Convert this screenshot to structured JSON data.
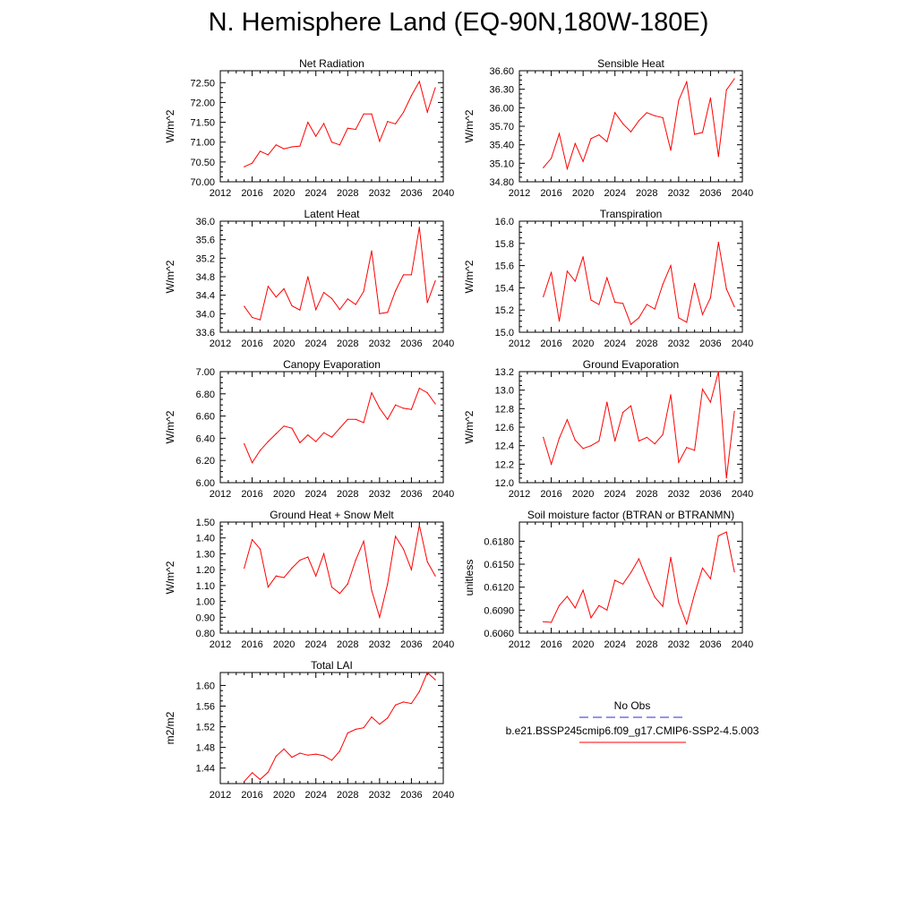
{
  "page_title": "N. Hemisphere Land (EQ-90N,180W-180E)",
  "legend": {
    "obs_label": "No Obs",
    "obs_color": "#2b2bd6",
    "model_label": "b.e21.BSSP245cmip6.f09_g17.CMIP6-SSP2-4.5.003",
    "model_color": "#ff0000"
  },
  "chart_data": [
    {
      "type": "line",
      "title": "Net Radiation",
      "ylabel": "W/m^2",
      "xlim": [
        2012,
        2040
      ],
      "x_ticks": [
        2012,
        2016,
        2020,
        2024,
        2028,
        2032,
        2036,
        2040
      ],
      "ylim": [
        70.0,
        72.8
      ],
      "y_ticks": [
        "70.00",
        "70.50",
        "71.00",
        "71.50",
        "72.00",
        "72.50"
      ],
      "series": [
        {
          "color": "#ff0000",
          "x": [
            2015,
            2016,
            2017,
            2018,
            2019,
            2020,
            2021,
            2022,
            2023,
            2024,
            2025,
            2026,
            2027,
            2028,
            2029,
            2030,
            2031,
            2032,
            2033,
            2034,
            2035,
            2036,
            2037,
            2038,
            2039
          ],
          "y": [
            70.38,
            70.47,
            70.77,
            70.68,
            70.93,
            70.83,
            70.88,
            70.9,
            71.5,
            71.15,
            71.47,
            71.0,
            70.93,
            71.35,
            71.32,
            71.71,
            71.71,
            71.02,
            71.52,
            71.46,
            71.75,
            72.17,
            72.53,
            71.76,
            72.37
          ]
        }
      ]
    },
    {
      "type": "line",
      "title": "Sensible Heat",
      "ylabel": "W/m^2",
      "xlim": [
        2012,
        2040
      ],
      "x_ticks": [
        2012,
        2016,
        2020,
        2024,
        2028,
        2032,
        2036,
        2040
      ],
      "ylim": [
        34.8,
        36.6
      ],
      "y_ticks": [
        "34.80",
        "35.10",
        "35.40",
        "35.70",
        "36.00",
        "36.30",
        "36.60"
      ],
      "series": [
        {
          "color": "#ff0000",
          "x": [
            2015,
            2016,
            2017,
            2018,
            2019,
            2020,
            2021,
            2022,
            2023,
            2024,
            2025,
            2026,
            2027,
            2028,
            2029,
            2030,
            2031,
            2032,
            2033,
            2034,
            2035,
            2036,
            2037,
            2038,
            2039
          ],
          "y": [
            35.03,
            35.18,
            35.58,
            35.01,
            35.42,
            35.13,
            35.5,
            35.56,
            35.45,
            35.92,
            35.74,
            35.61,
            35.79,
            35.92,
            35.87,
            35.84,
            35.31,
            36.12,
            36.42,
            35.57,
            35.6,
            36.16,
            35.21,
            36.29,
            36.47
          ]
        }
      ]
    },
    {
      "type": "line",
      "title": "Latent Heat",
      "ylabel": "W/m^2",
      "xlim": [
        2012,
        2040
      ],
      "x_ticks": [
        2012,
        2016,
        2020,
        2024,
        2028,
        2032,
        2036,
        2040
      ],
      "ylim": [
        33.6,
        36.0
      ],
      "y_ticks": [
        "33.6",
        "34.0",
        "34.4",
        "34.8",
        "35.2",
        "35.6",
        "36.0"
      ],
      "series": [
        {
          "color": "#ff0000",
          "x": [
            2015,
            2016,
            2017,
            2018,
            2019,
            2020,
            2021,
            2022,
            2023,
            2024,
            2025,
            2026,
            2027,
            2028,
            2029,
            2030,
            2031,
            2032,
            2033,
            2034,
            2035,
            2036,
            2037,
            2038,
            2039
          ],
          "y": [
            34.16,
            33.92,
            33.87,
            34.59,
            34.36,
            34.54,
            34.17,
            34.08,
            34.8,
            34.09,
            34.46,
            34.33,
            34.09,
            34.32,
            34.2,
            34.48,
            35.36,
            34.0,
            34.03,
            34.49,
            34.84,
            34.84,
            35.87,
            34.24,
            34.71
          ]
        }
      ]
    },
    {
      "type": "line",
      "title": "Transpiration",
      "ylabel": "W/m^2",
      "xlim": [
        2012,
        2040
      ],
      "x_ticks": [
        2012,
        2016,
        2020,
        2024,
        2028,
        2032,
        2036,
        2040
      ],
      "ylim": [
        15.0,
        16.0
      ],
      "y_ticks": [
        "15.0",
        "15.2",
        "15.4",
        "15.6",
        "15.8",
        "16.0"
      ],
      "series": [
        {
          "color": "#ff0000",
          "x": [
            2015,
            2016,
            2017,
            2018,
            2019,
            2020,
            2021,
            2022,
            2023,
            2024,
            2025,
            2026,
            2027,
            2028,
            2029,
            2030,
            2031,
            2032,
            2033,
            2034,
            2035,
            2036,
            2037,
            2038,
            2039
          ],
          "y": [
            15.32,
            15.54,
            15.1,
            15.55,
            15.46,
            15.68,
            15.29,
            15.25,
            15.49,
            15.27,
            15.26,
            15.07,
            15.13,
            15.25,
            15.21,
            15.43,
            15.6,
            15.13,
            15.09,
            15.44,
            15.16,
            15.31,
            15.81,
            15.39,
            15.23
          ]
        }
      ]
    },
    {
      "type": "line",
      "title": "Canopy Evaporation",
      "ylabel": "W/m^2",
      "xlim": [
        2012,
        2040
      ],
      "x_ticks": [
        2012,
        2016,
        2020,
        2024,
        2028,
        2032,
        2036,
        2040
      ],
      "ylim": [
        6.0,
        7.0
      ],
      "y_ticks": [
        "6.00",
        "6.20",
        "6.40",
        "6.60",
        "6.80",
        "7.00"
      ],
      "series": [
        {
          "color": "#ff0000",
          "x": [
            2015,
            2016,
            2017,
            2018,
            2019,
            2020,
            2021,
            2022,
            2023,
            2024,
            2025,
            2026,
            2027,
            2028,
            2029,
            2030,
            2031,
            2032,
            2033,
            2034,
            2035,
            2036,
            2037,
            2038,
            2039
          ],
          "y": [
            6.35,
            6.18,
            6.29,
            6.37,
            6.44,
            6.51,
            6.49,
            6.36,
            6.43,
            6.37,
            6.45,
            6.41,
            6.49,
            6.57,
            6.57,
            6.54,
            6.81,
            6.67,
            6.57,
            6.7,
            6.67,
            6.66,
            6.85,
            6.81,
            6.71
          ]
        }
      ]
    },
    {
      "type": "line",
      "title": "Ground Evaporation",
      "ylabel": "W/m^2",
      "xlim": [
        2012,
        2040
      ],
      "x_ticks": [
        2012,
        2016,
        2020,
        2024,
        2028,
        2032,
        2036,
        2040
      ],
      "ylim": [
        12.0,
        13.2
      ],
      "y_ticks": [
        "12.0",
        "12.2",
        "12.4",
        "12.6",
        "12.8",
        "13.0",
        "13.2"
      ],
      "series": [
        {
          "color": "#ff0000",
          "x": [
            2015,
            2016,
            2017,
            2018,
            2019,
            2020,
            2021,
            2022,
            2023,
            2024,
            2025,
            2026,
            2027,
            2028,
            2029,
            2030,
            2031,
            2032,
            2033,
            2034,
            2035,
            2036,
            2037,
            2038,
            2039
          ],
          "y": [
            12.49,
            12.2,
            12.48,
            12.68,
            12.46,
            12.37,
            12.4,
            12.45,
            12.87,
            12.45,
            12.76,
            12.83,
            12.45,
            12.49,
            12.42,
            12.52,
            12.95,
            12.22,
            12.38,
            12.35,
            13.01,
            12.87,
            13.2,
            12.05,
            12.77
          ]
        }
      ]
    },
    {
      "type": "line",
      "title": "Ground Heat + Snow Melt",
      "ylabel": "W/m^2",
      "xlim": [
        2012,
        2040
      ],
      "x_ticks": [
        2012,
        2016,
        2020,
        2024,
        2028,
        2032,
        2036,
        2040
      ],
      "ylim": [
        0.8,
        1.5
      ],
      "y_ticks": [
        "0.80",
        "0.90",
        "1.00",
        "1.10",
        "1.20",
        "1.30",
        "1.40",
        "1.50"
      ],
      "series": [
        {
          "color": "#ff0000",
          "x": [
            2015,
            2016,
            2017,
            2018,
            2019,
            2020,
            2021,
            2022,
            2023,
            2024,
            2025,
            2026,
            2027,
            2028,
            2029,
            2030,
            2031,
            2032,
            2033,
            2034,
            2035,
            2036,
            2037,
            2038,
            2039
          ],
          "y": [
            1.21,
            1.39,
            1.33,
            1.09,
            1.16,
            1.15,
            1.21,
            1.26,
            1.28,
            1.16,
            1.3,
            1.09,
            1.05,
            1.11,
            1.26,
            1.38,
            1.07,
            0.9,
            1.11,
            1.41,
            1.33,
            1.2,
            1.48,
            1.25,
            1.16
          ]
        }
      ]
    },
    {
      "type": "line",
      "title": "Soil moisture factor (BTRAN or BTRANMN)",
      "ylabel": "unitless",
      "xlim": [
        2012,
        2040
      ],
      "x_ticks": [
        2012,
        2016,
        2020,
        2024,
        2028,
        2032,
        2036,
        2040
      ],
      "ylim": [
        0.606,
        0.6205
      ],
      "y_ticks": [
        "0.6060",
        "0.6090",
        "0.6120",
        "0.6150",
        "0.6180"
      ],
      "series": [
        {
          "color": "#ff0000",
          "x": [
            2015,
            2016,
            2017,
            2018,
            2019,
            2020,
            2021,
            2022,
            2023,
            2024,
            2025,
            2026,
            2027,
            2028,
            2029,
            2030,
            2031,
            2032,
            2033,
            2034,
            2035,
            2036,
            2037,
            2038,
            2039
          ],
          "y": [
            0.6075,
            0.6074,
            0.6096,
            0.6108,
            0.6093,
            0.6116,
            0.608,
            0.6096,
            0.609,
            0.6129,
            0.6124,
            0.6139,
            0.6157,
            0.6131,
            0.6107,
            0.6095,
            0.6159,
            0.61,
            0.6072,
            0.6111,
            0.6145,
            0.6131,
            0.6187,
            0.6192,
            0.614
          ]
        }
      ]
    },
    {
      "type": "line",
      "title": "Total LAI",
      "ylabel": "m2/m2",
      "xlim": [
        2012,
        2040
      ],
      "x_ticks": [
        2012,
        2016,
        2020,
        2024,
        2028,
        2032,
        2036,
        2040
      ],
      "ylim": [
        1.41,
        1.625
      ],
      "y_ticks": [
        "1.44",
        "1.48",
        "1.52",
        "1.56",
        "1.60"
      ],
      "series": [
        {
          "color": "#ff0000",
          "x": [
            2015,
            2016,
            2017,
            2018,
            2019,
            2020,
            2021,
            2022,
            2023,
            2024,
            2025,
            2026,
            2027,
            2028,
            2029,
            2030,
            2031,
            2032,
            2033,
            2034,
            2035,
            2036,
            2037,
            2038,
            2039
          ],
          "y": [
            1.414,
            1.431,
            1.418,
            1.432,
            1.463,
            1.477,
            1.461,
            1.469,
            1.465,
            1.467,
            1.464,
            1.455,
            1.473,
            1.508,
            1.515,
            1.518,
            1.539,
            1.525,
            1.537,
            1.562,
            1.568,
            1.565,
            1.588,
            1.625,
            1.611
          ]
        }
      ]
    }
  ]
}
